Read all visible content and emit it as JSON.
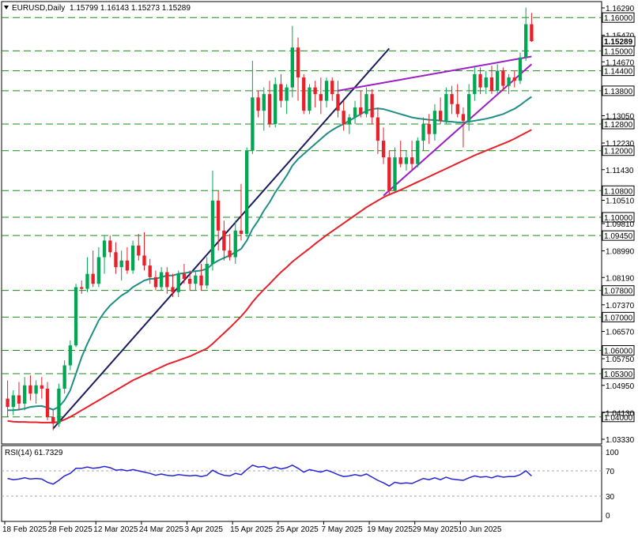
{
  "header": {
    "symbol_label": "EURUSD,Daily",
    "ohlc_label": "1.15799 1.16143 1.15273 1.15289",
    "collapse_icon": "triangle-down-icon"
  },
  "rsi_panel": {
    "label": "RSI(14) 61.7329",
    "levels_label": [
      "100",
      "70",
      "30",
      "0"
    ]
  },
  "colors": {
    "bull": "#00a651",
    "bear": "#e8202a",
    "ma_fast": "#1f8f86",
    "ma_slow": "#e8202a",
    "trend_dark": "#1a1a5e",
    "wedge": "#9b1fc4",
    "level_line": "#1a8a1a",
    "rsi": "#2424d4"
  },
  "chart_data": [
    {
      "type": "candlestick",
      "title": "EURUSD,Daily",
      "ylim": [
        1.0333,
        1.1629
      ],
      "x_ticks": [
        "18 Feb 2025",
        "28 Feb 2025",
        "12 Mar 2025",
        "24 Mar 2025",
        "3 Apr 2025",
        "15 Apr 2025",
        "25 Apr 2025",
        "7 May 2025",
        "19 May 2025",
        "29 May 2025",
        "10 Jun 2025"
      ],
      "y_ticks": [
        "1.16290",
        "1.15470",
        "1.14670",
        "1.13050",
        "1.12230",
        "1.11430",
        "1.10510",
        "1.09810",
        "1.08990",
        "1.08190",
        "1.07370",
        "1.06570",
        "1.05750",
        "1.04950",
        "1.04130",
        "1.03330"
      ],
      "horizontal_levels": [
        "1.16000",
        "1.15000",
        "1.14400",
        "1.13800",
        "1.12800",
        "1.12000",
        "1.10800",
        "1.10000",
        "1.09450",
        "1.07800",
        "1.07000",
        "1.06000",
        "1.05300",
        "1.04000"
      ],
      "last_price": "1.15289",
      "candles": [
        {
          "o": 1.0455,
          "h": 1.051,
          "l": 1.04,
          "c": 1.043
        },
        {
          "o": 1.043,
          "h": 1.048,
          "l": 1.0405,
          "c": 1.0465
        },
        {
          "o": 1.0465,
          "h": 1.0505,
          "l": 1.042,
          "c": 1.044
        },
        {
          "o": 1.044,
          "h": 1.052,
          "l": 1.042,
          "c": 1.0495
        },
        {
          "o": 1.0495,
          "h": 1.0525,
          "l": 1.045,
          "c": 1.047
        },
        {
          "o": 1.047,
          "h": 1.051,
          "l": 1.044,
          "c": 1.0495
        },
        {
          "o": 1.0495,
          "h": 1.052,
          "l": 1.0455,
          "c": 1.0485
        },
        {
          "o": 1.0485,
          "h": 1.0505,
          "l": 1.039,
          "c": 1.04
        },
        {
          "o": 1.04,
          "h": 1.042,
          "l": 1.036,
          "c": 1.038
        },
        {
          "o": 1.038,
          "h": 1.05,
          "l": 1.037,
          "c": 1.0485
        },
        {
          "o": 1.0485,
          "h": 1.057,
          "l": 1.047,
          "c": 1.0555
        },
        {
          "o": 1.0555,
          "h": 1.063,
          "l": 1.054,
          "c": 1.0615
        },
        {
          "o": 1.0615,
          "h": 1.08,
          "l": 1.061,
          "c": 1.079
        },
        {
          "o": 1.079,
          "h": 1.081,
          "l": 1.077,
          "c": 1.0785
        },
        {
          "o": 1.0785,
          "h": 1.088,
          "l": 1.0775,
          "c": 1.083
        },
        {
          "o": 1.083,
          "h": 1.09,
          "l": 1.079,
          "c": 1.08
        },
        {
          "o": 1.08,
          "h": 1.091,
          "l": 1.079,
          "c": 1.088
        },
        {
          "o": 1.088,
          "h": 1.0945,
          "l": 1.083,
          "c": 1.093
        },
        {
          "o": 1.093,
          "h": 1.0945,
          "l": 1.088,
          "c": 1.0895
        },
        {
          "o": 1.0895,
          "h": 1.0925,
          "l": 1.083,
          "c": 1.085
        },
        {
          "o": 1.085,
          "h": 1.09,
          "l": 1.081,
          "c": 1.087
        },
        {
          "o": 1.087,
          "h": 1.091,
          "l": 1.083,
          "c": 1.084
        },
        {
          "o": 1.084,
          "h": 1.093,
          "l": 1.083,
          "c": 1.0915
        },
        {
          "o": 1.0915,
          "h": 1.095,
          "l": 1.087,
          "c": 1.0885
        },
        {
          "o": 1.0885,
          "h": 1.0955,
          "l": 1.084,
          "c": 1.0855
        },
        {
          "o": 1.0855,
          "h": 1.0875,
          "l": 1.08,
          "c": 1.082
        },
        {
          "o": 1.082,
          "h": 1.084,
          "l": 1.078,
          "c": 1.079
        },
        {
          "o": 1.079,
          "h": 1.085,
          "l": 1.078,
          "c": 1.0835
        },
        {
          "o": 1.0835,
          "h": 1.085,
          "l": 1.077,
          "c": 1.079
        },
        {
          "o": 1.079,
          "h": 1.083,
          "l": 1.076,
          "c": 1.0775
        },
        {
          "o": 1.0775,
          "h": 1.084,
          "l": 1.076,
          "c": 1.083
        },
        {
          "o": 1.083,
          "h": 1.086,
          "l": 1.08,
          "c": 1.0815
        },
        {
          "o": 1.0815,
          "h": 1.084,
          "l": 1.078,
          "c": 1.08
        },
        {
          "o": 1.08,
          "h": 1.084,
          "l": 1.078,
          "c": 1.0825
        },
        {
          "o": 1.0825,
          "h": 1.086,
          "l": 1.078,
          "c": 1.0795
        },
        {
          "o": 1.0795,
          "h": 1.088,
          "l": 1.0785,
          "c": 1.086
        },
        {
          "o": 1.086,
          "h": 1.114,
          "l": 1.084,
          "c": 1.105
        },
        {
          "o": 1.105,
          "h": 1.108,
          "l": 1.09,
          "c": 1.096
        },
        {
          "o": 1.096,
          "h": 1.099,
          "l": 1.087,
          "c": 1.09
        },
        {
          "o": 1.09,
          "h": 1.095,
          "l": 1.087,
          "c": 1.088
        },
        {
          "o": 1.088,
          "h": 1.099,
          "l": 1.086,
          "c": 1.096
        },
        {
          "o": 1.096,
          "h": 1.11,
          "l": 1.093,
          "c": 1.095
        },
        {
          "o": 1.095,
          "h": 1.121,
          "l": 1.094,
          "c": 1.12
        },
        {
          "o": 1.12,
          "h": 1.147,
          "l": 1.119,
          "c": 1.136
        },
        {
          "o": 1.136,
          "h": 1.138,
          "l": 1.13,
          "c": 1.132
        },
        {
          "o": 1.132,
          "h": 1.139,
          "l": 1.126,
          "c": 1.137
        },
        {
          "o": 1.137,
          "h": 1.141,
          "l": 1.127,
          "c": 1.128
        },
        {
          "o": 1.128,
          "h": 1.142,
          "l": 1.127,
          "c": 1.14
        },
        {
          "o": 1.14,
          "h": 1.143,
          "l": 1.133,
          "c": 1.135
        },
        {
          "o": 1.135,
          "h": 1.14,
          "l": 1.131,
          "c": 1.139
        },
        {
          "o": 1.139,
          "h": 1.1575,
          "l": 1.136,
          "c": 1.151
        },
        {
          "o": 1.151,
          "h": 1.154,
          "l": 1.135,
          "c": 1.142
        },
        {
          "o": 1.142,
          "h": 1.143,
          "l": 1.131,
          "c": 1.132
        },
        {
          "o": 1.132,
          "h": 1.14,
          "l": 1.131,
          "c": 1.139
        },
        {
          "o": 1.139,
          "h": 1.141,
          "l": 1.133,
          "c": 1.137
        },
        {
          "o": 1.137,
          "h": 1.142,
          "l": 1.131,
          "c": 1.135
        },
        {
          "o": 1.135,
          "h": 1.142,
          "l": 1.133,
          "c": 1.141
        },
        {
          "o": 1.141,
          "h": 1.142,
          "l": 1.135,
          "c": 1.137
        },
        {
          "o": 1.137,
          "h": 1.141,
          "l": 1.13,
          "c": 1.132
        },
        {
          "o": 1.132,
          "h": 1.135,
          "l": 1.126,
          "c": 1.128
        },
        {
          "o": 1.128,
          "h": 1.131,
          "l": 1.125,
          "c": 1.13
        },
        {
          "o": 1.13,
          "h": 1.135,
          "l": 1.128,
          "c": 1.133
        },
        {
          "o": 1.133,
          "h": 1.138,
          "l": 1.13,
          "c": 1.131
        },
        {
          "o": 1.131,
          "h": 1.139,
          "l": 1.13,
          "c": 1.137
        },
        {
          "o": 1.137,
          "h": 1.1385,
          "l": 1.128,
          "c": 1.13
        },
        {
          "o": 1.13,
          "h": 1.133,
          "l": 1.119,
          "c": 1.123
        },
        {
          "o": 1.123,
          "h": 1.127,
          "l": 1.116,
          "c": 1.118
        },
        {
          "o": 1.118,
          "h": 1.12,
          "l": 1.1065,
          "c": 1.108
        },
        {
          "o": 1.108,
          "h": 1.121,
          "l": 1.1075,
          "c": 1.118
        },
        {
          "o": 1.118,
          "h": 1.123,
          "l": 1.115,
          "c": 1.116
        },
        {
          "o": 1.116,
          "h": 1.12,
          "l": 1.114,
          "c": 1.118
        },
        {
          "o": 1.118,
          "h": 1.123,
          "l": 1.114,
          "c": 1.116
        },
        {
          "o": 1.116,
          "h": 1.124,
          "l": 1.115,
          "c": 1.123
        },
        {
          "o": 1.123,
          "h": 1.13,
          "l": 1.12,
          "c": 1.128
        },
        {
          "o": 1.128,
          "h": 1.131,
          "l": 1.122,
          "c": 1.125
        },
        {
          "o": 1.125,
          "h": 1.134,
          "l": 1.123,
          "c": 1.132
        },
        {
          "o": 1.132,
          "h": 1.136,
          "l": 1.128,
          "c": 1.129
        },
        {
          "o": 1.129,
          "h": 1.139,
          "l": 1.128,
          "c": 1.137
        },
        {
          "o": 1.137,
          "h": 1.1395,
          "l": 1.131,
          "c": 1.134
        },
        {
          "o": 1.134,
          "h": 1.14,
          "l": 1.13,
          "c": 1.131
        },
        {
          "o": 1.131,
          "h": 1.133,
          "l": 1.121,
          "c": 1.129
        },
        {
          "o": 1.129,
          "h": 1.14,
          "l": 1.126,
          "c": 1.137
        },
        {
          "o": 1.137,
          "h": 1.145,
          "l": 1.135,
          "c": 1.143
        },
        {
          "o": 1.143,
          "h": 1.145,
          "l": 1.137,
          "c": 1.139
        },
        {
          "o": 1.139,
          "h": 1.144,
          "l": 1.137,
          "c": 1.142
        },
        {
          "o": 1.142,
          "h": 1.1455,
          "l": 1.137,
          "c": 1.138
        },
        {
          "o": 1.138,
          "h": 1.146,
          "l": 1.137,
          "c": 1.144
        },
        {
          "o": 1.144,
          "h": 1.145,
          "l": 1.138,
          "c": 1.1395
        },
        {
          "o": 1.1395,
          "h": 1.143,
          "l": 1.137,
          "c": 1.142
        },
        {
          "o": 1.142,
          "h": 1.144,
          "l": 1.139,
          "c": 1.141
        },
        {
          "o": 1.141,
          "h": 1.1495,
          "l": 1.14,
          "c": 1.148
        },
        {
          "o": 1.148,
          "h": 1.163,
          "l": 1.147,
          "c": 1.158
        },
        {
          "o": 1.158,
          "h": 1.1614,
          "l": 1.1527,
          "c": 1.1529
        }
      ],
      "ma_fast": [
        1.042,
        1.042,
        1.0422,
        1.0425,
        1.043,
        1.0432,
        1.0433,
        1.0428,
        1.0422,
        1.043,
        1.045,
        1.048,
        1.053,
        1.058,
        1.062,
        1.0655,
        1.069,
        1.0715,
        1.0735,
        1.075,
        1.0765,
        1.0775,
        1.079,
        1.08,
        1.081,
        1.0815,
        1.0815,
        1.082,
        1.0825,
        1.0825,
        1.083,
        1.0832,
        1.0835,
        1.0838,
        1.084,
        1.0845,
        1.086,
        1.087,
        1.0878,
        1.0885,
        1.0895,
        1.0905,
        1.093,
        1.0965,
        1.099,
        1.102,
        1.1045,
        1.1075,
        1.11,
        1.1125,
        1.1155,
        1.1175,
        1.119,
        1.1205,
        1.122,
        1.1235,
        1.125,
        1.1262,
        1.1272,
        1.128,
        1.129,
        1.13,
        1.131,
        1.132,
        1.1325,
        1.1327,
        1.1325,
        1.132,
        1.1315,
        1.131,
        1.1305,
        1.13,
        1.1297,
        1.1295,
        1.1293,
        1.1292,
        1.129,
        1.1288,
        1.1287,
        1.1285,
        1.1285,
        1.1287,
        1.129,
        1.1293,
        1.1296,
        1.13,
        1.1305,
        1.131,
        1.1318,
        1.1326,
        1.1337,
        1.135,
        1.1362
      ],
      "ma_slow": [
        1.0388,
        1.0386,
        1.0385,
        1.0385,
        1.0384,
        1.0384,
        1.0383,
        1.0383,
        1.0383,
        1.0385,
        1.0392,
        1.04,
        1.041,
        1.042,
        1.043,
        1.044,
        1.045,
        1.046,
        1.047,
        1.048,
        1.049,
        1.05,
        1.051,
        1.0518,
        1.0526,
        1.0534,
        1.0542,
        1.055,
        1.0558,
        1.0564,
        1.057,
        1.0576,
        1.0582,
        1.059,
        1.0598,
        1.0606,
        1.062,
        1.0636,
        1.0652,
        1.0668,
        1.0685,
        1.0702,
        1.0722,
        1.0745,
        1.0765,
        1.0783,
        1.08,
        1.0818,
        1.0835,
        1.085,
        1.0866,
        1.088,
        1.0893,
        1.0906,
        1.092,
        1.0933,
        1.0946,
        1.0958,
        1.097,
        1.0982,
        1.0994,
        1.1006,
        1.1018,
        1.103,
        1.104,
        1.105,
        1.106,
        1.1068,
        1.1075,
        1.1082,
        1.109,
        1.1098,
        1.1106,
        1.1114,
        1.1122,
        1.113,
        1.1138,
        1.1146,
        1.1154,
        1.1162,
        1.117,
        1.1178,
        1.1186,
        1.1193,
        1.12,
        1.1207,
        1.1214,
        1.1221,
        1.1228,
        1.1236,
        1.1245,
        1.1254,
        1.1263
      ],
      "trendlines": [
        {
          "name": "trend-dark",
          "from": {
            "i": 8,
            "p": 1.0365
          },
          "to": {
            "i": 67,
            "p": 1.1507
          }
        },
        {
          "name": "wedge-upper",
          "from": {
            "i": 58,
            "p": 1.138
          },
          "to": {
            "i": 92,
            "p": 1.1483
          }
        },
        {
          "name": "wedge-lower",
          "from": {
            "i": 66,
            "p": 1.1065
          },
          "to": {
            "i": 92,
            "p": 1.146
          }
        }
      ]
    },
    {
      "type": "line",
      "title": "RSI(14) 61.7329",
      "ylim": [
        0,
        100
      ],
      "y_ticks": [
        "100",
        "70",
        "30",
        "0"
      ],
      "values": [
        58,
        56,
        57,
        59,
        57,
        58,
        57,
        52,
        49,
        55,
        62,
        66,
        74,
        74,
        76,
        74,
        75,
        77,
        75,
        71,
        72,
        70,
        72,
        70,
        68,
        66,
        63,
        65,
        63,
        62,
        64,
        63,
        62,
        63,
        61,
        63,
        71,
        66,
        63,
        62,
        66,
        64,
        72,
        79,
        76,
        77,
        73,
        76,
        73,
        75,
        79,
        74,
        68,
        72,
        70,
        68,
        71,
        68,
        64,
        61,
        62,
        64,
        62,
        65,
        60,
        55,
        51,
        46,
        52,
        50,
        51,
        50,
        54,
        58,
        56,
        59,
        56,
        60,
        57,
        56,
        55,
        59,
        62,
        60,
        61,
        59,
        62,
        60,
        61,
        61,
        64,
        70,
        62
      ]
    }
  ]
}
